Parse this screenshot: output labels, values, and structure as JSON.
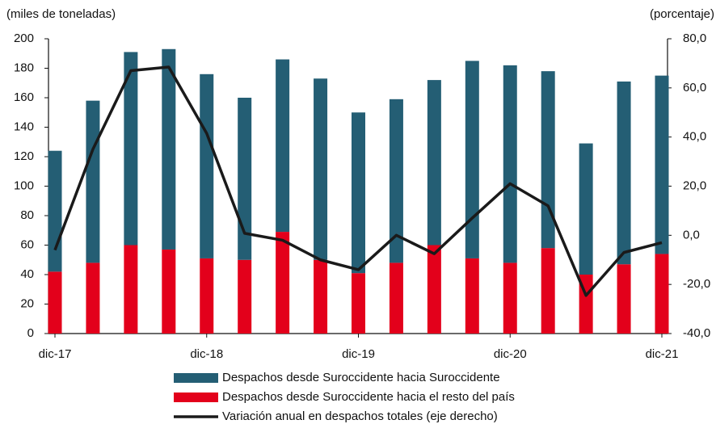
{
  "chart_data": {
    "type": "bar-line",
    "y_label": "(miles de toneladas)",
    "y2_label": "(porcentaje)",
    "categories": [
      "dic-17",
      null,
      null,
      null,
      "dic-18",
      null,
      null,
      null,
      "dic-19",
      null,
      null,
      null,
      "dic-20",
      null,
      null,
      null,
      "dic-21"
    ],
    "series": [
      {
        "name": "Despachos desde Suroccidente hacia Suroccidente",
        "color": "#245e74",
        "kind": "bar",
        "stacked": true,
        "values": [
          82,
          110,
          131,
          136,
          125,
          110,
          117,
          123,
          109,
          111,
          112,
          134,
          134,
          120,
          89,
          124,
          121
        ]
      },
      {
        "name": "Despachos desde Suroccidente hacia el resto del país",
        "color": "#e3001b",
        "kind": "bar",
        "stacked": true,
        "values": [
          42,
          48,
          60,
          57,
          51,
          50,
          69,
          50,
          41,
          48,
          60,
          51,
          48,
          58,
          40,
          47,
          54
        ]
      },
      {
        "name": "Variación anual en despachos totales (eje derecho)",
        "color": "#1a1a1a",
        "kind": "line",
        "axis": "y2",
        "values": [
          -6,
          35,
          67,
          68.5,
          41.5,
          0.8,
          -2,
          -10,
          -14,
          0,
          -7.5,
          7,
          21,
          12,
          -24.5,
          -7,
          -3
        ]
      }
    ],
    "ylim": [
      0,
      200
    ],
    "yticks": [
      0,
      20,
      40,
      60,
      80,
      100,
      120,
      140,
      160,
      180,
      200
    ],
    "y2lim": [
      -40,
      80
    ],
    "y2ticks": [
      {
        "value": -40,
        "label": "-40,0"
      },
      {
        "value": -20,
        "label": "-20,0"
      },
      {
        "value": 0,
        "label": "0,0"
      },
      {
        "value": 20,
        "label": "20,0"
      },
      {
        "value": 40,
        "label": "40,0"
      },
      {
        "value": 60,
        "label": "60,0"
      },
      {
        "value": 80,
        "label": "80,0"
      }
    ]
  }
}
